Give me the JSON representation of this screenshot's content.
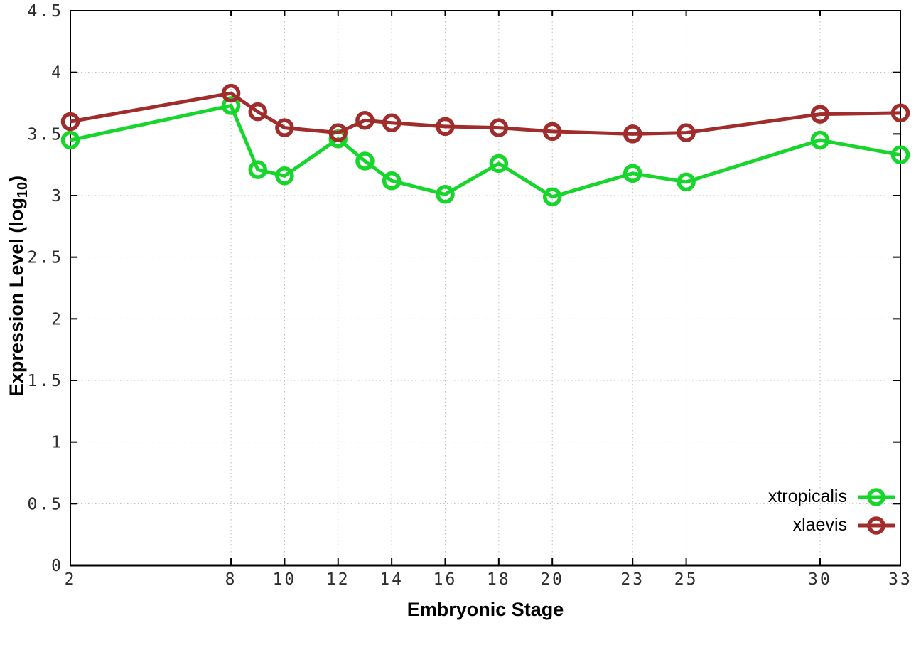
{
  "background_color": "#ffffff",
  "chart_data": {
    "type": "line",
    "title": "",
    "xlabel": "Embryonic Stage",
    "ylabel": "Expression Level (log10)",
    "ylabel_main": "Expression Level (log",
    "ylabel_sub": "10",
    "ylabel_close": ")",
    "xlim": [
      2,
      33
    ],
    "ylim": [
      0,
      4.5
    ],
    "grid": true,
    "legend_position": "bottom-right",
    "x": [
      2,
      8,
      9,
      10,
      12,
      13,
      14,
      16,
      18,
      20,
      23,
      25,
      30,
      33
    ],
    "xtick_values": [
      2,
      8,
      10,
      12,
      14,
      16,
      18,
      20,
      23,
      25,
      30,
      33
    ],
    "xtick_labels": [
      "2",
      "8",
      "10",
      "12",
      "14",
      "16",
      "18",
      "20",
      "23",
      "25",
      "30",
      "33"
    ],
    "ytick_values": [
      0,
      0.5,
      1,
      1.5,
      2,
      2.5,
      3,
      3.5,
      4,
      4.5
    ],
    "ytick_labels": [
      "0",
      "0.5",
      "1",
      "1.5",
      "2",
      "2.5",
      "3",
      "3.5",
      "4",
      "4.5"
    ],
    "series": [
      {
        "name": "xtropicalis",
        "color": "#17d62b",
        "marker": "open-circle",
        "values": [
          3.45,
          3.73,
          3.21,
          3.16,
          3.46,
          3.28,
          3.12,
          3.01,
          3.26,
          2.99,
          3.18,
          3.11,
          3.45,
          3.33
        ]
      },
      {
        "name": "xlaevis",
        "color": "#a02c2c",
        "marker": "open-circle",
        "values": [
          3.6,
          3.83,
          3.68,
          3.55,
          3.51,
          3.61,
          3.59,
          3.56,
          3.55,
          3.52,
          3.5,
          3.51,
          3.66,
          3.67
        ]
      }
    ],
    "axis_color": "#000000",
    "grid_color": "#b8b8b8",
    "tick_label_color": "#2e2e2e"
  }
}
